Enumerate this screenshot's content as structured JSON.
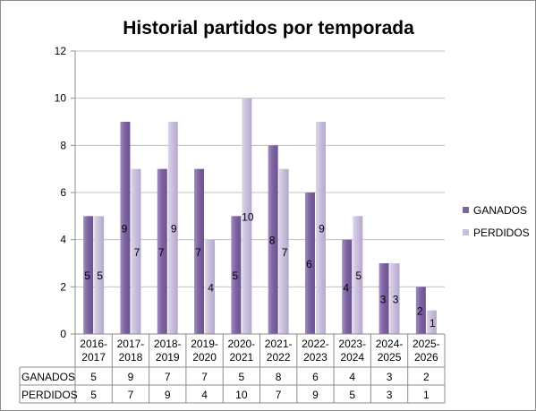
{
  "chart_data": {
    "type": "bar",
    "title": "Historial partidos por temporada",
    "categories": [
      [
        "2016-",
        "2017"
      ],
      [
        "2017-",
        "2018"
      ],
      [
        "2018-",
        "2019"
      ],
      [
        "2019-",
        "2020"
      ],
      [
        "2020-",
        "2021"
      ],
      [
        "2021-",
        "2022"
      ],
      [
        "2022-",
        "2023"
      ],
      [
        "2023-",
        "2024"
      ],
      [
        "2024-",
        "2025"
      ],
      [
        "2025-",
        "2026"
      ]
    ],
    "series": [
      {
        "name": "GANADOS",
        "values": [
          5,
          9,
          7,
          7,
          5,
          8,
          6,
          4,
          3,
          2
        ],
        "color": "#8064a2"
      },
      {
        "name": "PERDIDOS",
        "values": [
          5,
          7,
          9,
          4,
          10,
          7,
          9,
          5,
          3,
          1
        ],
        "color": "#c9bfdc"
      }
    ],
    "yticks": [
      0,
      2,
      4,
      6,
      8,
      10,
      12
    ],
    "ylim": [
      0,
      12
    ],
    "grid": true,
    "legend": "right",
    "data_table": true
  }
}
